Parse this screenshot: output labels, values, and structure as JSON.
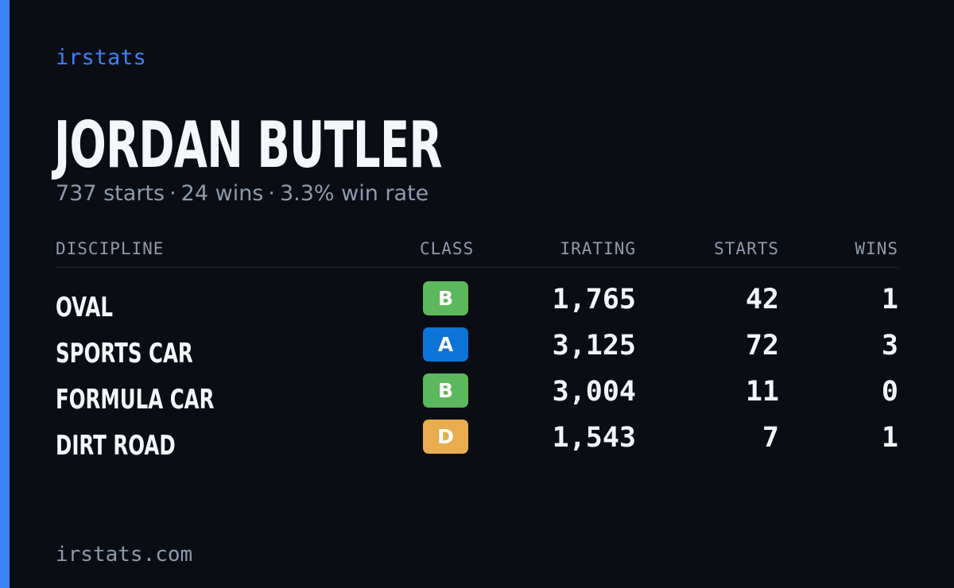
{
  "brand": "irstats",
  "driver": {
    "name": "JORDAN BUTLER"
  },
  "summary": {
    "starts": "737 starts",
    "wins": "24 wins",
    "win_rate": "3.3% win rate",
    "separator": "·"
  },
  "table": {
    "headers": {
      "discipline": "DISCIPLINE",
      "class": "CLASS",
      "irating": "IRATING",
      "starts": "STARTS",
      "wins": "WINS"
    },
    "rows": [
      {
        "discipline": "OVAL",
        "class": "B",
        "class_color": "#5cb85c",
        "irating": "1,765",
        "starts": "42",
        "wins": "1"
      },
      {
        "discipline": "SPORTS CAR",
        "class": "A",
        "class_color": "#0b74d6",
        "irating": "3,125",
        "starts": "72",
        "wins": "3"
      },
      {
        "discipline": "FORMULA CAR",
        "class": "B",
        "class_color": "#5cb85c",
        "irating": "3,004",
        "starts": "11",
        "wins": "0"
      },
      {
        "discipline": "DIRT ROAD",
        "class": "D",
        "class_color": "#e8ad4e",
        "irating": "1,543",
        "starts": "7",
        "wins": "1"
      }
    ]
  },
  "footer": {
    "url": "irstats.com"
  },
  "colors": {
    "accent": "#3b82f6",
    "background": "#0a0d14",
    "text": "#f4f6f9",
    "muted": "#8e9aac"
  }
}
